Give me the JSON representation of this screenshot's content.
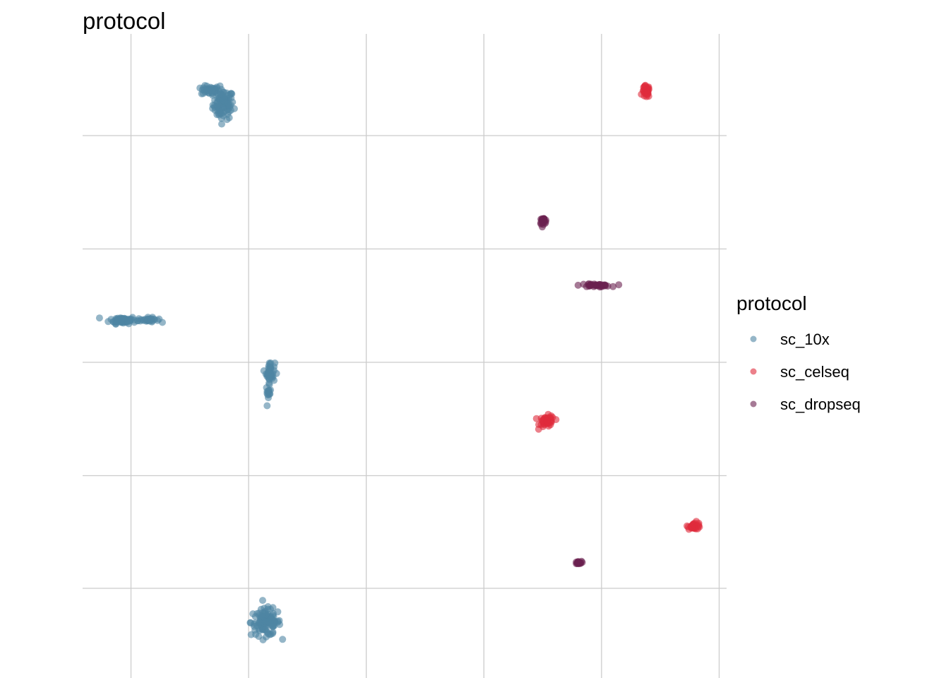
{
  "chart_data": {
    "type": "scatter",
    "title": "protocol",
    "xlabel": "",
    "ylabel": "",
    "xlim": [
      -1,
      25
    ],
    "ylim": [
      -1,
      25
    ],
    "grid": true,
    "axis_ticks_labeled": false,
    "legend": {
      "title": "protocol",
      "placement": "right"
    },
    "point_alpha": 0.6,
    "series": [
      {
        "name": "sc_10x",
        "color": "#4f86a4",
        "clusters": [
          {
            "cx": 4.68,
            "cy": 22.15,
            "sx": 0.35,
            "sy": 0.5,
            "n": 90
          },
          {
            "cx": 4.15,
            "cy": 22.72,
            "sx": 0.3,
            "sy": 0.15,
            "n": 40
          },
          {
            "cx": 0.62,
            "cy": 13.45,
            "sx": 0.45,
            "sy": 0.12,
            "n": 60
          },
          {
            "cx": 1.65,
            "cy": 13.45,
            "sx": 0.35,
            "sy": 0.08,
            "n": 30
          },
          {
            "cx": 6.58,
            "cy": 11.35,
            "sx": 0.15,
            "sy": 0.35,
            "n": 40
          },
          {
            "cx": 6.5,
            "cy": 10.5,
            "sx": 0.08,
            "sy": 0.25,
            "n": 15
          },
          {
            "cx": 6.4,
            "cy": 1.25,
            "sx": 0.5,
            "sy": 0.45,
            "n": 110
          }
        ]
      },
      {
        "name": "sc_celseq",
        "color": "#e02b3c",
        "clusters": [
          {
            "cx": 21.75,
            "cy": 22.67,
            "sx": 0.12,
            "sy": 0.2,
            "n": 40
          },
          {
            "cx": 17.75,
            "cy": 9.35,
            "sx": 0.25,
            "sy": 0.2,
            "n": 45
          },
          {
            "cx": 23.7,
            "cy": 5.15,
            "sx": 0.22,
            "sy": 0.12,
            "n": 30
          }
        ]
      },
      {
        "name": "sc_dropseq",
        "color": "#6b2150",
        "clusters": [
          {
            "cx": 17.6,
            "cy": 17.45,
            "sx": 0.12,
            "sy": 0.1,
            "n": 25
          },
          {
            "cx": 19.7,
            "cy": 14.85,
            "sx": 0.5,
            "sy": 0.05,
            "n": 40
          },
          {
            "cx": 19.0,
            "cy": 3.65,
            "sx": 0.12,
            "sy": 0.05,
            "n": 20
          }
        ]
      }
    ]
  }
}
